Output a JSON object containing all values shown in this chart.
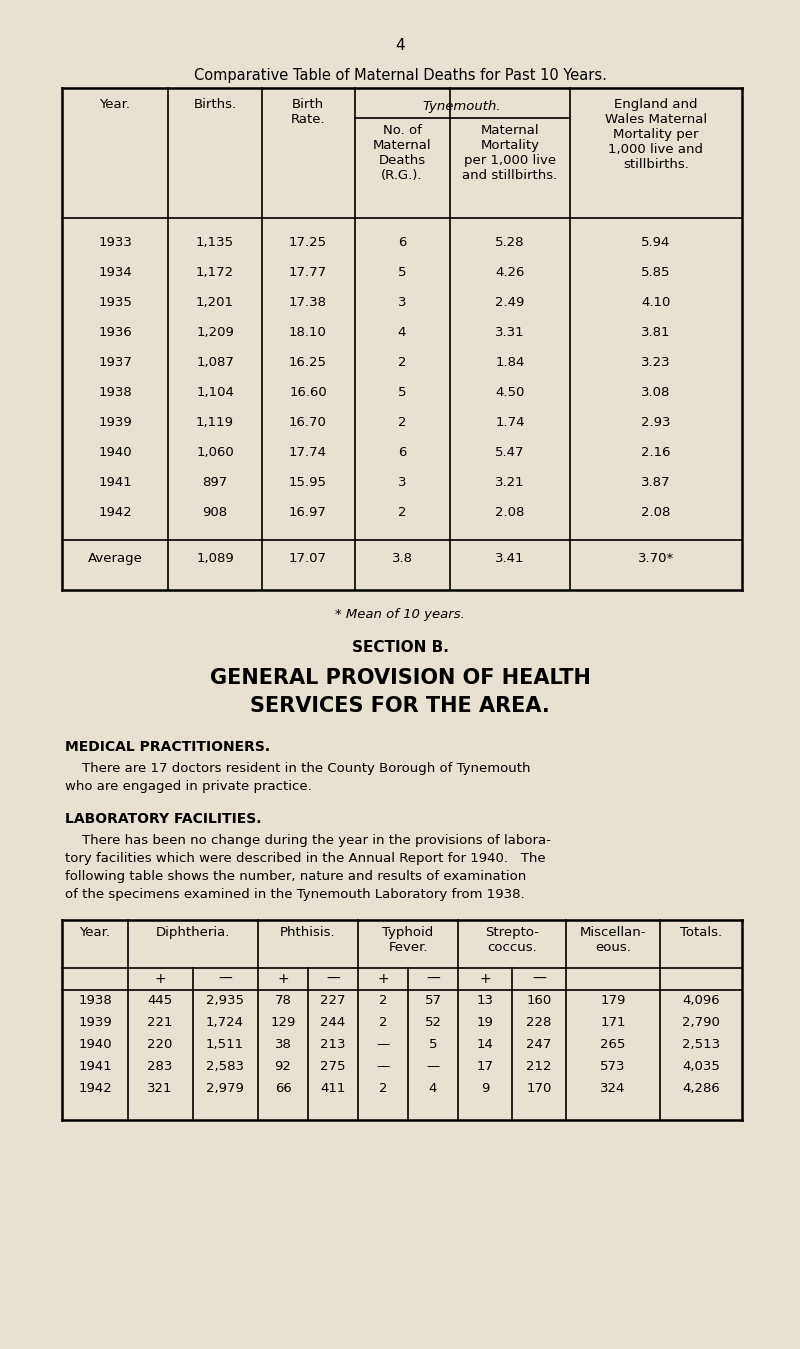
{
  "bg_color": "#e8e0d0",
  "page_num": "4",
  "title1": "Comparative Table of Maternal Deaths for Past 10 Years.",
  "table1_data": [
    [
      "1933",
      "1,135",
      "17.25",
      "6",
      "5.28",
      "5.94"
    ],
    [
      "1934",
      "1,172",
      "17.77",
      "5",
      "4.26",
      "5.85"
    ],
    [
      "1935",
      "1,201",
      "17.38",
      "3",
      "2.49",
      "4.10"
    ],
    [
      "1936",
      "1,209",
      "18.10",
      "4",
      "3.31",
      "3.81"
    ],
    [
      "1937",
      "1,087",
      "16.25",
      "2",
      "1.84",
      "3.23"
    ],
    [
      "1938",
      "1,104",
      "16.60",
      "5",
      "4.50",
      "3.08"
    ],
    [
      "1939",
      "1,119",
      "16.70",
      "2",
      "1.74",
      "2.93"
    ],
    [
      "1940",
      "1,060",
      "17.74",
      "6",
      "5.47",
      "2.16"
    ],
    [
      "1941",
      "897",
      "15.95",
      "3",
      "3.21",
      "3.87"
    ],
    [
      "1942",
      "908",
      "16.97",
      "2",
      "2.08",
      "2.08"
    ]
  ],
  "table1_avg": [
    "Average",
    "1,089",
    "17.07",
    "3.8",
    "3.41",
    "3.70*"
  ],
  "footnote": "* Mean of 10 years.",
  "section_b": "SECTION B.",
  "section_title1": "GENERAL PROVISION OF HEALTH",
  "section_title2": "SERVICES FOR THE AREA.",
  "medical_head": "MEDICAL PRACTITIONERS.",
  "medical_line1": "    There are 17 doctors resident in the County Borough of Tynemouth",
  "medical_line2": "who are engaged in private practice.",
  "lab_head": "LABORATORY FACILITIES.",
  "lab_line1": "    There has been no change during the year in the provisions of labora-",
  "lab_line2": "tory facilities which were described in the Annual Report for 1940.   The",
  "lab_line3": "following table shows the number, nature and results of examination",
  "lab_line4": "of the specimens examined in the Tynemouth Laboratory from 1938.",
  "table2_data": [
    [
      "1938",
      "445",
      "2,935",
      "78",
      "227",
      "2",
      "57",
      "13",
      "160",
      "179",
      "4,096"
    ],
    [
      "1939",
      "221",
      "1,724",
      "129",
      "244",
      "2",
      "52",
      "19",
      "228",
      "171",
      "2,790"
    ],
    [
      "1940",
      "220",
      "1,511",
      "38",
      "213",
      "—",
      "5",
      "14",
      "247",
      "265",
      "2,513"
    ],
    [
      "1941",
      "283",
      "2,583",
      "92",
      "275",
      "—",
      "—",
      "17",
      "212",
      "573",
      "4,035"
    ],
    [
      "1942",
      "321",
      "2,979",
      "66",
      "411",
      "2",
      "4",
      "9",
      "170",
      "324",
      "4,286"
    ]
  ]
}
